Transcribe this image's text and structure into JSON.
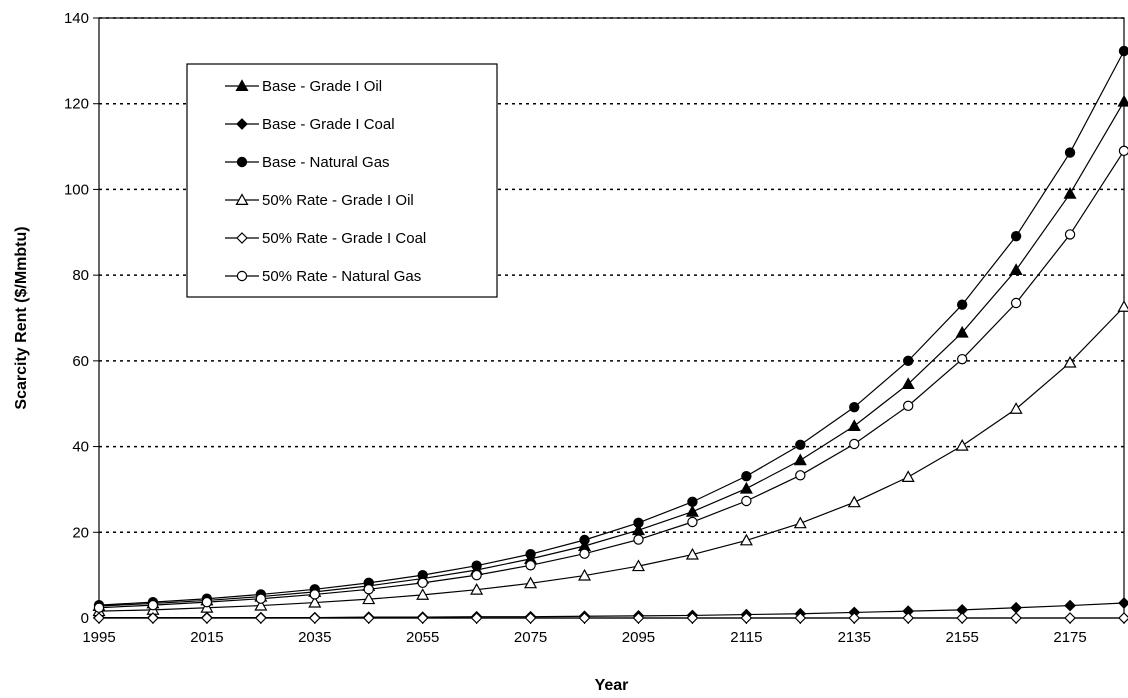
{
  "chart_data": {
    "type": "line",
    "title": "",
    "xlabel": "Year",
    "ylabel": "Scarcity Rent ($/Mmbtu)",
    "xlim": [
      1995,
      2185
    ],
    "ylim": [
      0,
      140
    ],
    "x_ticks": [
      1995,
      2015,
      2035,
      2055,
      2075,
      2095,
      2115,
      2135,
      2155,
      2175
    ],
    "y_ticks": [
      0,
      20,
      40,
      60,
      80,
      100,
      120,
      140
    ],
    "grid": "horizontal dotted",
    "legend_position": "top-left",
    "x": [
      1995,
      2005,
      2015,
      2025,
      2035,
      2045,
      2055,
      2065,
      2075,
      2085,
      2095,
      2105,
      2115,
      2125,
      2135,
      2145,
      2155,
      2165,
      2175,
      2185
    ],
    "series": [
      {
        "name": "Base - Grade I Oil",
        "marker": "triangle-filled",
        "values": [
          2.8,
          3.4,
          4.1,
          5.0,
          6.1,
          7.5,
          9.2,
          11.2,
          13.8,
          16.8,
          20.5,
          24.8,
          30.2,
          36.8,
          44.8,
          54.6,
          66.6,
          81.2,
          99.0,
          120.5
        ]
      },
      {
        "name": "Base - Grade I Coal",
        "marker": "diamond-filled",
        "values": [
          0.1,
          0.1,
          0.1,
          0.1,
          0.1,
          0.2,
          0.2,
          0.3,
          0.3,
          0.4,
          0.5,
          0.6,
          0.8,
          1.0,
          1.3,
          1.6,
          1.9,
          2.4,
          2.9,
          3.5
        ]
      },
      {
        "name": "Base - Natural Gas",
        "marker": "circle-filled",
        "values": [
          3.0,
          3.7,
          4.5,
          5.5,
          6.7,
          8.2,
          10.0,
          12.2,
          14.9,
          18.2,
          22.2,
          27.1,
          33.1,
          40.4,
          49.2,
          60.0,
          73.1,
          89.1,
          108.6,
          132.3
        ]
      },
      {
        "name": "50% Rate - Grade I Oil",
        "marker": "triangle-open",
        "values": [
          1.6,
          1.9,
          2.4,
          2.9,
          3.6,
          4.4,
          5.4,
          6.6,
          8.1,
          9.9,
          12.1,
          14.8,
          18.1,
          22.1,
          27.0,
          32.9,
          40.2,
          48.8,
          59.6,
          72.6
        ]
      },
      {
        "name": "50% Rate - Grade I Coal",
        "marker": "diamond-open",
        "values": [
          0.0,
          0.0,
          0.0,
          0.0,
          0.0,
          0.0,
          0.0,
          0.0,
          0.0,
          0.0,
          0.0,
          0.0,
          0.0,
          0.0,
          0.0,
          0.0,
          0.0,
          0.0,
          0.0,
          0.0
        ]
      },
      {
        "name": "50% Rate - Natural Gas",
        "marker": "circle-open",
        "values": [
          2.4,
          3.0,
          3.7,
          4.5,
          5.5,
          6.7,
          8.2,
          10.0,
          12.3,
          15.0,
          18.3,
          22.4,
          27.3,
          33.3,
          40.6,
          49.5,
          60.4,
          73.5,
          89.5,
          109.0
        ]
      }
    ]
  }
}
